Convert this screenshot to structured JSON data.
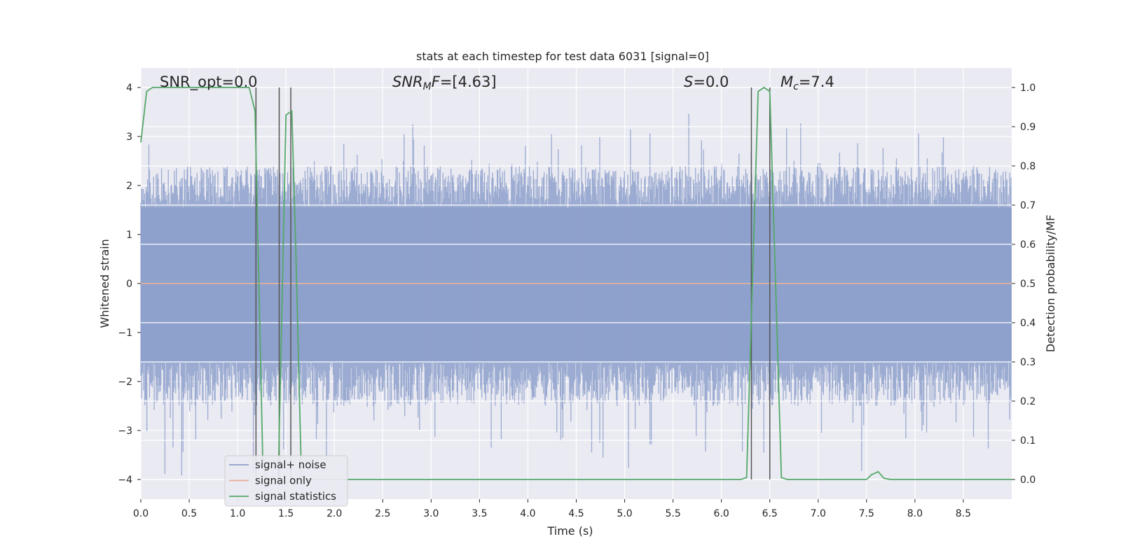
{
  "chart_data": {
    "type": "line",
    "title": "stats at each timestep for test data 6031 [signal=0]",
    "xlabel": "Time (s)",
    "ylabel_left": "Whitened strain",
    "ylabel_right": "Detection probability/MF",
    "xlim": [
      0.0,
      9.0
    ],
    "ylim_left": [
      -4.4,
      4.4
    ],
    "ylim_right": [
      -0.05,
      1.05
    ],
    "x_ticks": [
      "0.0",
      "0.5",
      "1.0",
      "1.5",
      "2.0",
      "2.5",
      "3.0",
      "3.5",
      "4.0",
      "4.5",
      "5.0",
      "5.5",
      "6.0",
      "6.5",
      "7.0",
      "7.5",
      "8.0",
      "8.5"
    ],
    "y_left_ticks": [
      "4",
      "3",
      "2",
      "1",
      "0",
      "−1",
      "−2",
      "−3",
      "−4"
    ],
    "y_right_ticks": [
      "1.0",
      "0.9",
      "0.8",
      "0.7",
      "0.6",
      "0.5",
      "0.4",
      "0.3",
      "0.2",
      "0.1",
      "0.0"
    ],
    "grid": true,
    "legend_position": "lower-left",
    "annotations": {
      "snr_opt": "SNR_opt=0.0",
      "snr_mf_prefix": "SNR",
      "snr_mf_sub": "M",
      "snr_mf_suffix": "F=[4.63]",
      "s_italic": "S",
      "s_value": "=0.0",
      "mc_italic": "M",
      "mc_sub": "c",
      "mc_value": "=7.4"
    },
    "series": [
      {
        "name": "signal+ noise",
        "color": "#8da0cb",
        "description_style": "dense noise trace",
        "noise_band": [
          -1.6,
          1.55
        ],
        "peak_range": [
          -4.0,
          3.9
        ]
      },
      {
        "name": "signal only",
        "color": "#e5ae94",
        "y_constant": 0.0
      },
      {
        "name": "signal statistics",
        "color": "#55a868",
        "axis": "right",
        "points": [
          [
            0.0,
            0.86
          ],
          [
            0.06,
            0.99
          ],
          [
            0.12,
            1.0
          ],
          [
            0.5,
            1.0
          ],
          [
            1.0,
            1.0
          ],
          [
            1.12,
            1.0
          ],
          [
            1.18,
            0.94
          ],
          [
            1.22,
            0.5
          ],
          [
            1.26,
            0.05
          ],
          [
            1.3,
            0.0
          ],
          [
            1.42,
            0.0
          ],
          [
            1.46,
            0.45
          ],
          [
            1.5,
            0.93
          ],
          [
            1.56,
            0.94
          ],
          [
            1.6,
            0.6
          ],
          [
            1.66,
            0.0
          ],
          [
            2.0,
            0.0
          ],
          [
            3.0,
            0.0
          ],
          [
            4.0,
            0.0
          ],
          [
            5.0,
            0.0
          ],
          [
            6.0,
            0.0
          ],
          [
            6.2,
            0.0
          ],
          [
            6.26,
            0.005
          ],
          [
            6.32,
            0.5
          ],
          [
            6.38,
            0.99
          ],
          [
            6.44,
            1.0
          ],
          [
            6.5,
            0.99
          ],
          [
            6.56,
            0.5
          ],
          [
            6.62,
            0.005
          ],
          [
            6.68,
            0.0
          ],
          [
            7.5,
            0.0
          ],
          [
            7.55,
            0.012
          ],
          [
            7.62,
            0.02
          ],
          [
            7.68,
            0.003
          ],
          [
            7.75,
            0.0
          ],
          [
            9.0,
            0.0
          ]
        ]
      }
    ],
    "vertical_lines": [
      1.19,
      1.43,
      1.55,
      6.31,
      6.5
    ],
    "vertical_line_color": "#555555"
  }
}
